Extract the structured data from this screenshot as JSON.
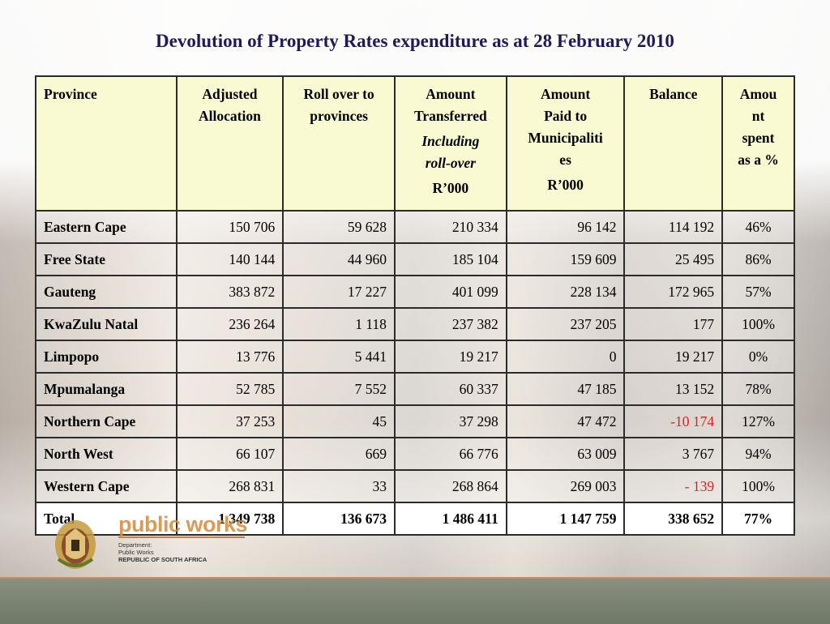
{
  "title": "Devolution of Property Rates expenditure as at 28 February 2010",
  "table": {
    "headers": [
      {
        "lines": [
          "Province"
        ]
      },
      {
        "lines": [
          "Adjusted",
          "Allocation"
        ]
      },
      {
        "lines": [
          "Roll over to",
          "provinces"
        ]
      },
      {
        "lines": [
          "Amount",
          "Transferred"
        ],
        "italic": [
          "Including",
          "roll-over"
        ],
        "unit": "R’000"
      },
      {
        "lines": [
          "Amount",
          "Paid to",
          "Municipaliti",
          "es"
        ],
        "unit": "R’000"
      },
      {
        "lines": [
          "Balance"
        ]
      },
      {
        "lines": [
          "Amou",
          "nt",
          "spent",
          "as a %"
        ]
      }
    ],
    "rows": [
      {
        "province": "Eastern Cape",
        "allocation": "150 706",
        "rollover": "59 628",
        "transferred": "210 334",
        "paid": "96 142",
        "balance": "114 192",
        "pct": "46%"
      },
      {
        "province": "Free State",
        "allocation": "140 144",
        "rollover": "44 960",
        "transferred": "185 104",
        "paid": "159 609",
        "balance": "25 495",
        "pct": "86%"
      },
      {
        "province": "Gauteng",
        "allocation": "383 872",
        "rollover": "17 227",
        "transferred": "401 099",
        "paid": "228 134",
        "balance": "172 965",
        "pct": "57%"
      },
      {
        "province": "KwaZulu Natal",
        "allocation": "236 264",
        "rollover": "1 118",
        "transferred": "237 382",
        "paid": "237 205",
        "balance": "177",
        "pct": "100%"
      },
      {
        "province": "Limpopo",
        "allocation": "13 776",
        "rollover": "5 441",
        "transferred": "19 217",
        "paid": "0",
        "balance": "19 217",
        "pct": "0%"
      },
      {
        "province": "Mpumalanga",
        "allocation": "52 785",
        "rollover": "7 552",
        "transferred": "60 337",
        "paid": "47 185",
        "balance": "13 152",
        "pct": "78%"
      },
      {
        "province": "Northern Cape",
        "allocation": "37 253",
        "rollover": "45",
        "transferred": "37 298",
        "paid": "47 472",
        "balance": "-10 174",
        "pct": "127%",
        "negative": true
      },
      {
        "province": "North West",
        "allocation": "66 107",
        "rollover": "669",
        "transferred": "66 776",
        "paid": "63 009",
        "balance": "3 767",
        "pct": "94%"
      },
      {
        "province": "Western Cape",
        "allocation": "268 831",
        "rollover": "33",
        "transferred": "268 864",
        "paid": "269 003",
        "balance": "- 139",
        "pct": "100%",
        "negative": true
      }
    ],
    "total": {
      "province": "Total",
      "allocation": "1 349 738",
      "rollover": "136 673",
      "transferred": "1 486 411",
      "paid": "1 147 759",
      "balance": "338 652",
      "pct": "77%"
    }
  },
  "logo": {
    "name": "public works",
    "lines": [
      "Department:",
      "Public Works",
      "REPUBLIC OF SOUTH AFRICA"
    ]
  },
  "colors": {
    "title": "#1f1a5a",
    "header_bg": "#fafad2",
    "negative": "#e02020",
    "logo_accent": "#d38a3a"
  }
}
